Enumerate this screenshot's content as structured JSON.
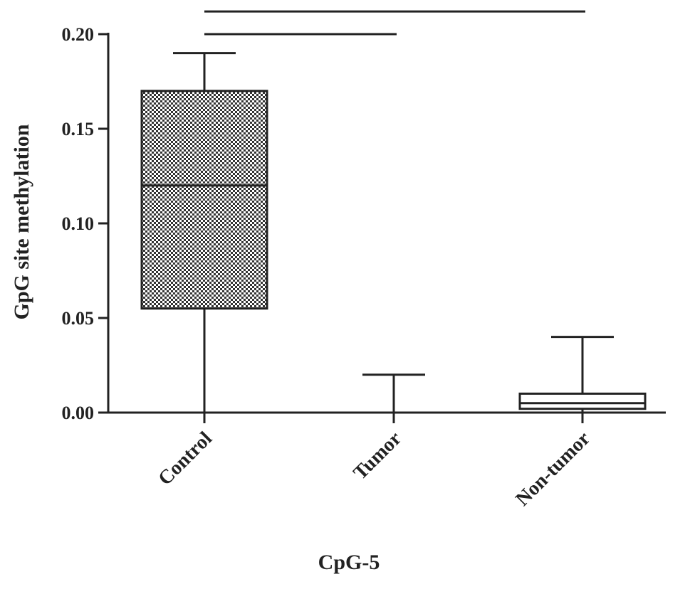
{
  "chart_data": {
    "type": "box",
    "title": "",
    "xlabel": "CpG-5",
    "ylabel": "GpG site methylation",
    "ylim": [
      0,
      0.2
    ],
    "yticks": [
      "0.00",
      "0.05",
      "0.10",
      "0.15",
      "0.20"
    ],
    "categories": [
      "Control",
      "Tumor",
      "Non-tumor"
    ],
    "boxes": [
      {
        "category": "Control",
        "min": 0.0,
        "q1": 0.055,
        "median": 0.12,
        "q3": 0.17,
        "max": 0.19,
        "pattern": "checkered"
      },
      {
        "category": "Tumor",
        "min": 0.0,
        "q1": 0.0,
        "median": 0.0,
        "q3": 0.0,
        "max": 0.02,
        "pattern": "none"
      },
      {
        "category": "Non-tumor",
        "min": 0.0,
        "q1": 0.002,
        "median": 0.005,
        "q3": 0.01,
        "max": 0.04,
        "pattern": "none"
      }
    ],
    "significance_bars": [
      {
        "from": "Control",
        "to": "Tumor",
        "y": 0.2
      },
      {
        "from": "Control",
        "to": "Non-tumor",
        "y": 0.212
      }
    ],
    "grid": false,
    "legend": "none"
  }
}
